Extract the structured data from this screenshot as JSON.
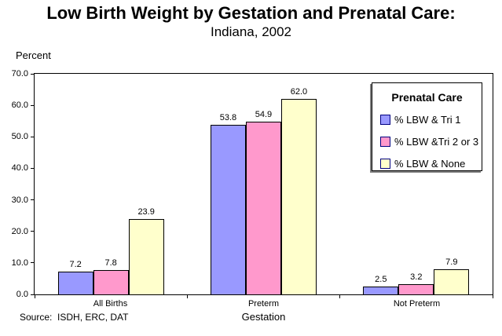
{
  "page": {
    "source": "Source:  ISDH, ERC, DAT"
  },
  "chart_data": {
    "type": "bar",
    "title": "Low Birth Weight by Gestation and Prenatal Care:",
    "subtitle": "Indiana, 2002",
    "categories": [
      "All Births",
      "Preterm",
      "Not Preterm"
    ],
    "series": [
      {
        "name": "% LBW & Tri 1",
        "color": "#9999FF",
        "values": [
          7.2,
          53.8,
          2.5
        ]
      },
      {
        "name": "% LBW &Tri 2 or 3",
        "color": "#FF99CC",
        "values": [
          7.8,
          54.9,
          3.2
        ]
      },
      {
        "name": "% LBW & None",
        "color": "#FFFFCC",
        "values": [
          23.9,
          62.0,
          7.9
        ]
      }
    ],
    "xlabel": "Gestation",
    "ylabel": "Percent",
    "ylim": [
      0,
      70
    ],
    "ytick_labels": [
      "0.0",
      "10.0",
      "20.0",
      "30.0",
      "40.0",
      "50.0",
      "60.0",
      "70.0"
    ],
    "grid": false,
    "data_labels": true,
    "legend_title": "Prenatal Care",
    "legend_position": "top-right",
    "bar_border_color": "#000000",
    "legend_swatch_border_color": "#000080",
    "legend_shadow_color": "#808080"
  }
}
